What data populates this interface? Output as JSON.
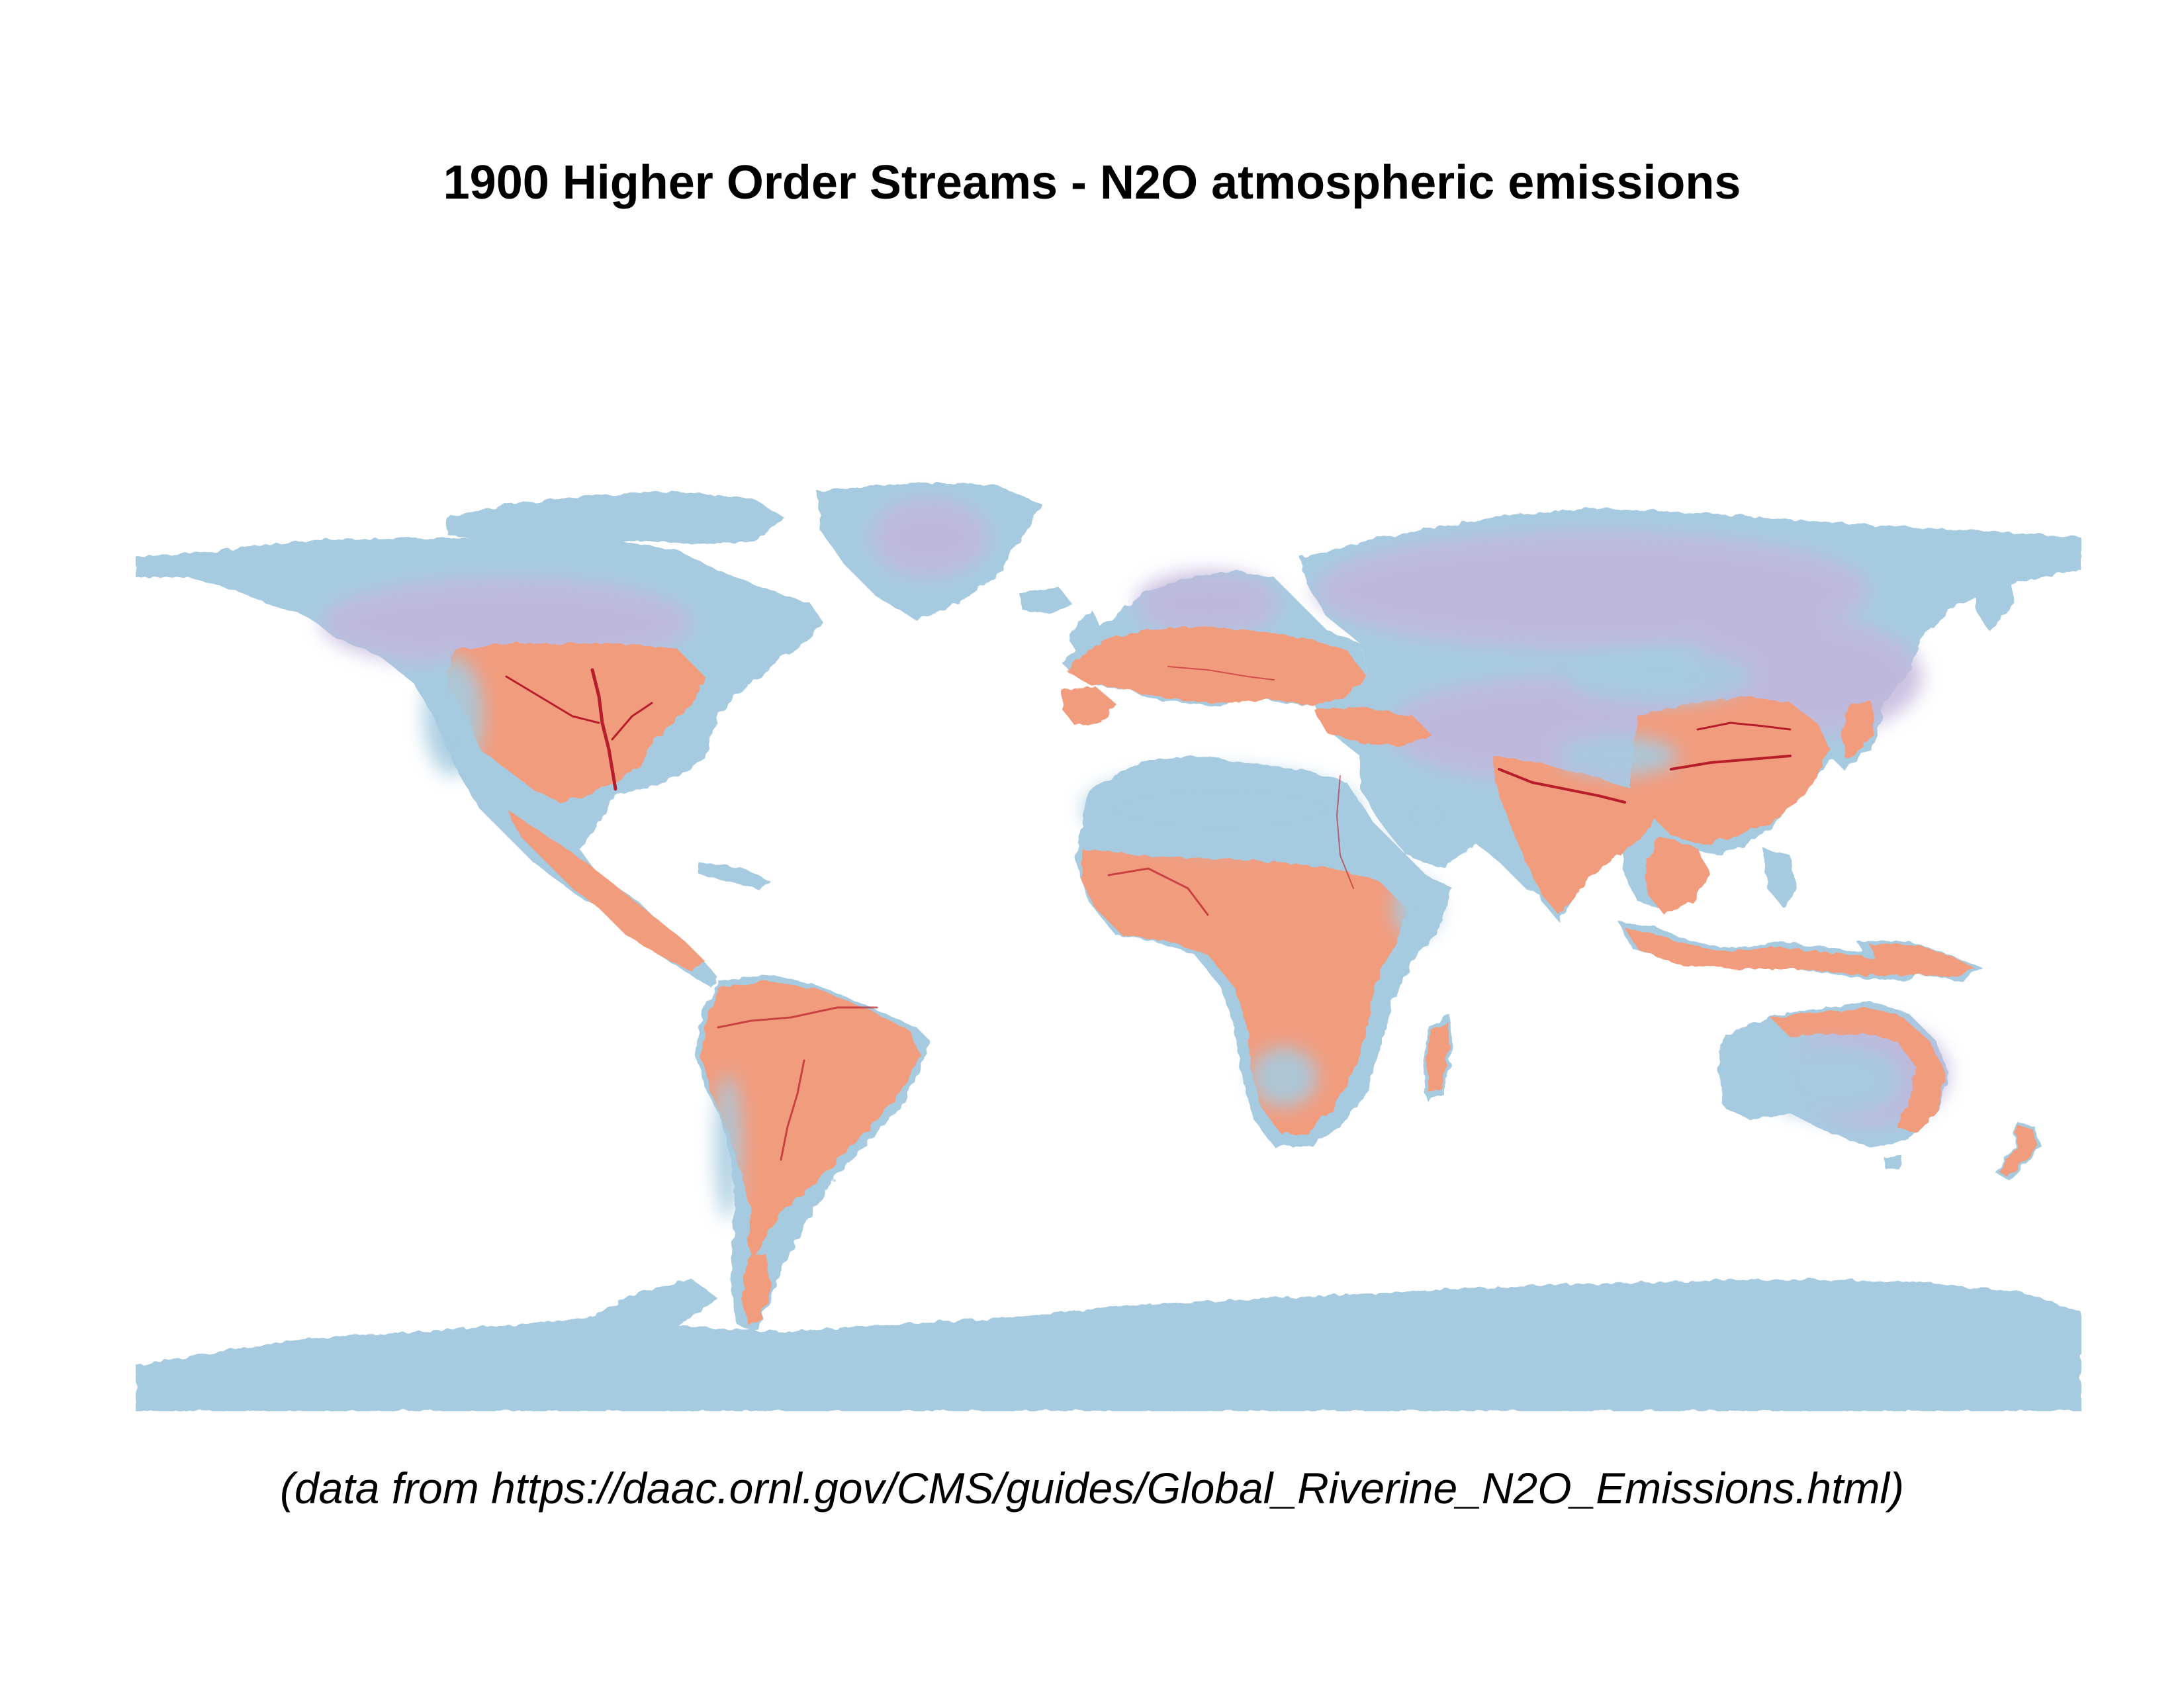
{
  "title": "1900 Higher Order Streams - N2O atmospheric emissions",
  "caption": "(data from https://daac.ornl.gov/CMS/guides/Global_Riverine_N2O_Emissions.html)",
  "map": {
    "projection": "equirectangular",
    "extent": {
      "lon": [
        -180,
        180
      ],
      "lat": [
        -90,
        84
      ]
    },
    "colors": {
      "background": "#ffffff",
      "low": "#a6cbe0",
      "mid": "#c3b7dc",
      "high": "#f29c7e",
      "peak": "#b81d2a"
    }
  }
}
